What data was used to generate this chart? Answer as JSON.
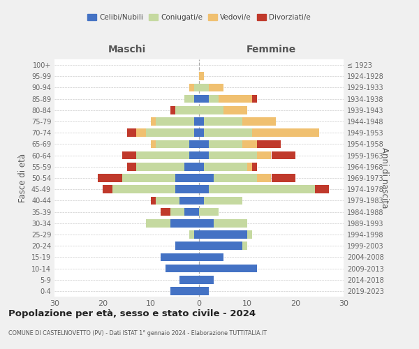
{
  "age_groups": [
    "0-4",
    "5-9",
    "10-14",
    "15-19",
    "20-24",
    "25-29",
    "30-34",
    "35-39",
    "40-44",
    "45-49",
    "50-54",
    "55-59",
    "60-64",
    "65-69",
    "70-74",
    "75-79",
    "80-84",
    "85-89",
    "90-94",
    "95-99",
    "100+"
  ],
  "birth_years": [
    "2019-2023",
    "2014-2018",
    "2009-2013",
    "2004-2008",
    "1999-2003",
    "1994-1998",
    "1989-1993",
    "1984-1988",
    "1979-1983",
    "1974-1978",
    "1969-1973",
    "1964-1968",
    "1959-1963",
    "1954-1958",
    "1949-1953",
    "1944-1948",
    "1939-1943",
    "1934-1938",
    "1929-1933",
    "1924-1928",
    "≤ 1923"
  ],
  "maschi": {
    "celibi": [
      6,
      4,
      7,
      8,
      5,
      1,
      6,
      3,
      4,
      5,
      5,
      3,
      2,
      2,
      1,
      1,
      0,
      1,
      0,
      0,
      0
    ],
    "coniugati": [
      0,
      0,
      0,
      0,
      0,
      1,
      5,
      3,
      5,
      13,
      11,
      10,
      11,
      7,
      10,
      8,
      5,
      2,
      1,
      0,
      0
    ],
    "vedovi": [
      0,
      0,
      0,
      0,
      0,
      0,
      0,
      0,
      0,
      0,
      0,
      0,
      0,
      1,
      2,
      1,
      0,
      0,
      1,
      0,
      0
    ],
    "divorziati": [
      0,
      0,
      0,
      0,
      0,
      0,
      0,
      2,
      1,
      2,
      5,
      2,
      3,
      0,
      2,
      0,
      1,
      0,
      0,
      0,
      0
    ]
  },
  "femmine": {
    "nubili": [
      2,
      3,
      12,
      5,
      9,
      10,
      3,
      0,
      1,
      2,
      3,
      1,
      2,
      2,
      1,
      1,
      0,
      2,
      0,
      0,
      0
    ],
    "coniugate": [
      0,
      0,
      0,
      0,
      1,
      1,
      7,
      4,
      8,
      22,
      9,
      9,
      10,
      7,
      10,
      8,
      5,
      2,
      2,
      0,
      0
    ],
    "vedove": [
      0,
      0,
      0,
      0,
      0,
      0,
      0,
      0,
      0,
      0,
      3,
      1,
      3,
      3,
      14,
      7,
      5,
      7,
      3,
      1,
      0
    ],
    "divorziate": [
      0,
      0,
      0,
      0,
      0,
      0,
      0,
      0,
      0,
      3,
      5,
      1,
      5,
      5,
      0,
      0,
      0,
      1,
      0,
      0,
      0
    ]
  },
  "colors": {
    "celibi": "#4472c4",
    "coniugati": "#c5d9a0",
    "vedovi": "#f0c070",
    "divorziati": "#c0392b"
  },
  "xlim": 30,
  "title": "Popolazione per età, sesso e stato civile - 2024",
  "subtitle": "COMUNE DI CASTELNOVETTO (PV) - Dati ISTAT 1° gennaio 2024 - Elaborazione TUTTITALIA.IT",
  "ylabel_left": "Fasce di età",
  "ylabel_right": "Anni di nascita",
  "header_maschi": "Maschi",
  "header_femmine": "Femmine",
  "bg_color": "#f0f0f0",
  "plot_bg_color": "#ffffff",
  "legend_labels": [
    "Celibi/Nubili",
    "Coniugati/e",
    "Vedovi/e",
    "Divorziati/e"
  ]
}
